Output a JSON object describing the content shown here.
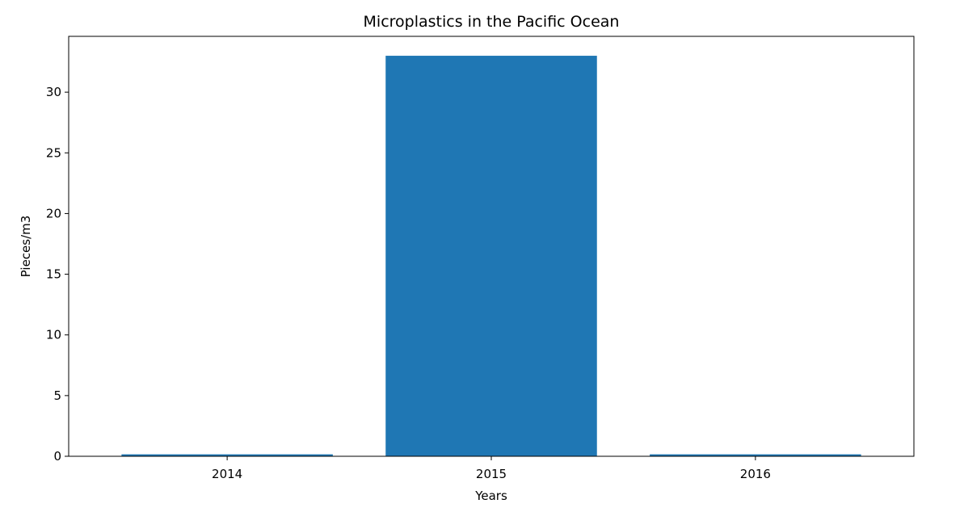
{
  "chart_data": {
    "type": "bar",
    "title": "Microplastics in the Pacific Ocean",
    "xlabel": "Years",
    "ylabel": "Pieces/m3",
    "categories": [
      "2014",
      "2015",
      "2016"
    ],
    "values": [
      0.16,
      33.0,
      0.16
    ],
    "ylim": [
      0,
      34.6
    ],
    "yticks": [
      0,
      5,
      10,
      15,
      20,
      25,
      30
    ],
    "bar_color": "#1f77b4",
    "grid": false,
    "legend": "none"
  }
}
